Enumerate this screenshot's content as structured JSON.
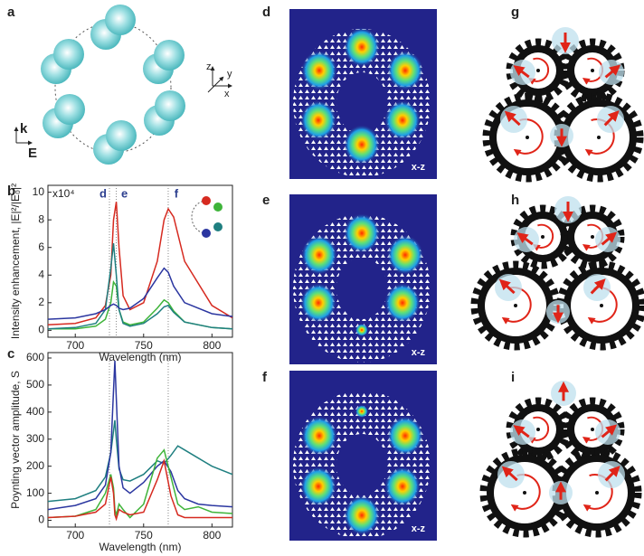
{
  "panel_labels": [
    "a",
    "b",
    "c",
    "d",
    "e",
    "f",
    "g",
    "h",
    "i"
  ],
  "diagram_a": {
    "axes": [
      "z",
      "y",
      "x"
    ],
    "k_label": "k",
    "e_label": "E"
  },
  "chart_data": [
    {
      "type": "line",
      "y_label": "Intensity enhancement, |E|²/|E₀|²",
      "x_label": "Wavelength (nm)",
      "multiplier": "x10⁴",
      "xlim": [
        680,
        815
      ],
      "ylim": [
        -0.5,
        10.5
      ],
      "xticks": [
        700,
        750,
        800
      ],
      "yticks": [
        0,
        2,
        4,
        6,
        8,
        10
      ],
      "markers": [
        {
          "x": 725,
          "label": "d"
        },
        {
          "x": 730,
          "label": "e"
        },
        {
          "x": 768,
          "label": "f"
        }
      ],
      "marker_label_color": "#2d3f8f",
      "x": [
        680,
        700,
        715,
        722,
        726,
        728,
        730,
        732,
        735,
        740,
        750,
        760,
        765,
        768,
        772,
        780,
        800,
        815
      ],
      "series": [
        {
          "color": "#d62a20",
          "values": [
            0.4,
            0.5,
            0.9,
            1.8,
            4,
            8,
            9.3,
            6,
            2.5,
            1.5,
            2,
            5,
            8,
            8.8,
            8.2,
            5,
            1.8,
            0.9
          ]
        },
        {
          "color": "#3fb43a",
          "values": [
            0.1,
            0.1,
            0.3,
            0.8,
            2,
            3.5,
            3.2,
            1.5,
            0.6,
            0.4,
            0.6,
            1.6,
            2.2,
            2,
            1.4,
            0.6,
            0.2,
            0.1
          ]
        },
        {
          "color": "#1f7f80",
          "values": [
            0.1,
            0.2,
            0.5,
            1.5,
            4.5,
            6.3,
            4,
            1.5,
            0.5,
            0.3,
            0.5,
            1.2,
            1.7,
            1.8,
            1.3,
            0.6,
            0.2,
            0.1
          ]
        },
        {
          "color": "#2b36a0",
          "values": [
            0.8,
            0.9,
            1.2,
            1.5,
            1.8,
            1.9,
            1.8,
            1.6,
            1.5,
            1.6,
            2.3,
            3.8,
            4.5,
            4.2,
            3.2,
            2,
            1.2,
            1
          ]
        }
      ]
    },
    {
      "type": "line",
      "y_label": "Poynting vector amplitude, S",
      "x_label": "Wavelength (nm)",
      "xlim": [
        680,
        815
      ],
      "ylim": [
        -25,
        620
      ],
      "xticks": [
        700,
        750,
        800
      ],
      "yticks": [
        0,
        100,
        200,
        300,
        400,
        500,
        600
      ],
      "vlines": [
        725,
        768
      ],
      "x": [
        680,
        700,
        715,
        722,
        726,
        728,
        729,
        730,
        732,
        735,
        740,
        750,
        760,
        765,
        770,
        775,
        780,
        790,
        800,
        815
      ],
      "series": [
        {
          "color": "#1f7f80",
          "values": [
            70,
            80,
            110,
            160,
            250,
            330,
            370,
            300,
            190,
            150,
            145,
            170,
            220,
            210,
            240,
            275,
            260,
            230,
            200,
            170
          ]
        },
        {
          "color": "#2b36a0",
          "values": [
            40,
            55,
            80,
            130,
            250,
            480,
            590,
            450,
            200,
            120,
            100,
            140,
            200,
            220,
            180,
            110,
            80,
            60,
            55,
            50
          ]
        },
        {
          "color": "#3fb43a",
          "values": [
            10,
            15,
            40,
            100,
            170,
            120,
            40,
            20,
            60,
            40,
            10,
            60,
            230,
            260,
            160,
            60,
            40,
            50,
            30,
            25
          ]
        },
        {
          "color": "#d62a20",
          "values": [
            10,
            15,
            30,
            60,
            160,
            100,
            20,
            5,
            40,
            30,
            20,
            30,
            150,
            220,
            90,
            20,
            10,
            10,
            10,
            10
          ]
        }
      ]
    }
  ],
  "field_maps": {
    "labels": [
      "x-z",
      "x-z",
      "x-z"
    ]
  }
}
